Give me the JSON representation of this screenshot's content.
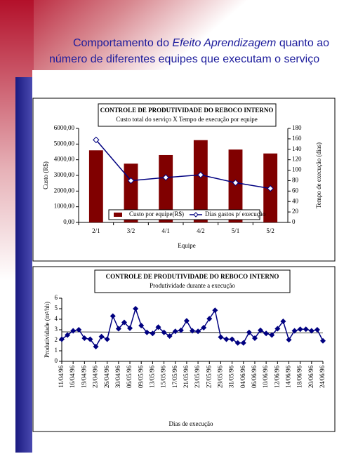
{
  "header": {
    "line1_start": "Comportamento do",
    "line1_italic": "Efeito Aprendizagem",
    "line1_end": "quanto ao",
    "line2": "número de diferentes equipes que executam o serviço"
  },
  "chart_data": [
    {
      "type": "bar",
      "title": "CONTROLE DE PRODUTIVIDADE DO REBOCO INTERNO",
      "subtitle": "Custo total do serviço X Tempo de execução por equipe",
      "xlabel": "Equipe",
      "ylabel": "Custo (R$)",
      "y2label": "Tempo de execução (dias)",
      "categories": [
        "2/1",
        "3/2",
        "4/1",
        "4/2",
        "5/1",
        "5/2"
      ],
      "series": [
        {
          "name": "Custo por equipe(R$)",
          "color": "#800000",
          "values": [
            4600,
            3750,
            4300,
            5250,
            4650,
            4400
          ]
        },
        {
          "name": "Dias gastos p/ execução",
          "color": "#000080",
          "axis": "y2",
          "type": "line",
          "values": [
            158,
            80,
            86,
            91,
            76,
            65
          ]
        }
      ],
      "ylim": [
        0,
        6000
      ],
      "yticks": [
        {
          "value": 0,
          "label": "0,00"
        },
        {
          "value": 1000,
          "label": "1000,00"
        },
        {
          "value": 2000,
          "label": "2000,00"
        },
        {
          "value": 3000,
          "label": "3000,00"
        },
        {
          "value": 4000,
          "label": "4000,00"
        },
        {
          "value": 5000,
          "label": "5000,00"
        },
        {
          "value": 6000,
          "label": "6000,00"
        }
      ],
      "y2lim": [
        0,
        180
      ],
      "y2ticks": [
        0,
        20,
        40,
        60,
        80,
        100,
        120,
        140,
        160,
        180
      ],
      "legend": "bottom"
    },
    {
      "type": "line",
      "title": "CONTROLE DE PRODUTIVIDADE DO REBOCO INTERNO",
      "subtitle": "Produtividade durante a execução",
      "xlabel": "Dias de execução",
      "ylabel": "Produtividade (m²/hh)",
      "categories": [
        "11/04/96",
        null,
        "16/04/96",
        null,
        "19/04/96",
        null,
        "23/04/96",
        null,
        "26/04/96",
        null,
        "30/04/96",
        null,
        "06/05/96",
        null,
        "09/05/96",
        null,
        "13/05/96",
        null,
        "15/05/96",
        null,
        "17/05/96",
        null,
        "21/05/96",
        null,
        "23/05/96",
        null,
        "27/05/96",
        null,
        "29/05/96",
        null,
        "31/05/96",
        null,
        "04/06/96",
        null,
        "06/06/96",
        null,
        "10/06/96",
        null,
        "12/06/96",
        null,
        "14/06/96",
        null,
        "18/06/96",
        null,
        "20/06/96",
        null,
        "24/06/96"
      ],
      "series": [
        {
          "color": "#000080",
          "values": [
            2.1,
            2.5,
            2.9,
            3.0,
            2.2,
            2.1,
            1.4,
            2.35,
            2.1,
            4.3,
            3.1,
            3.7,
            3.15,
            5.0,
            3.4,
            2.75,
            2.65,
            3.25,
            2.75,
            2.4,
            2.85,
            2.95,
            3.85,
            2.9,
            2.85,
            3.2,
            4.05,
            4.85,
            2.3,
            2.1,
            2.1,
            1.75,
            1.75,
            2.75,
            2.2,
            2.95,
            2.65,
            2.5,
            3.1,
            3.8,
            2.05,
            2.9,
            3.05,
            3.05,
            2.9,
            3.0,
            1.95
          ]
        }
      ],
      "trend": [
        2.8,
        2.7
      ],
      "ylim": [
        0,
        6
      ],
      "yticks": [
        0,
        1,
        2,
        3,
        4,
        5,
        6
      ]
    }
  ]
}
